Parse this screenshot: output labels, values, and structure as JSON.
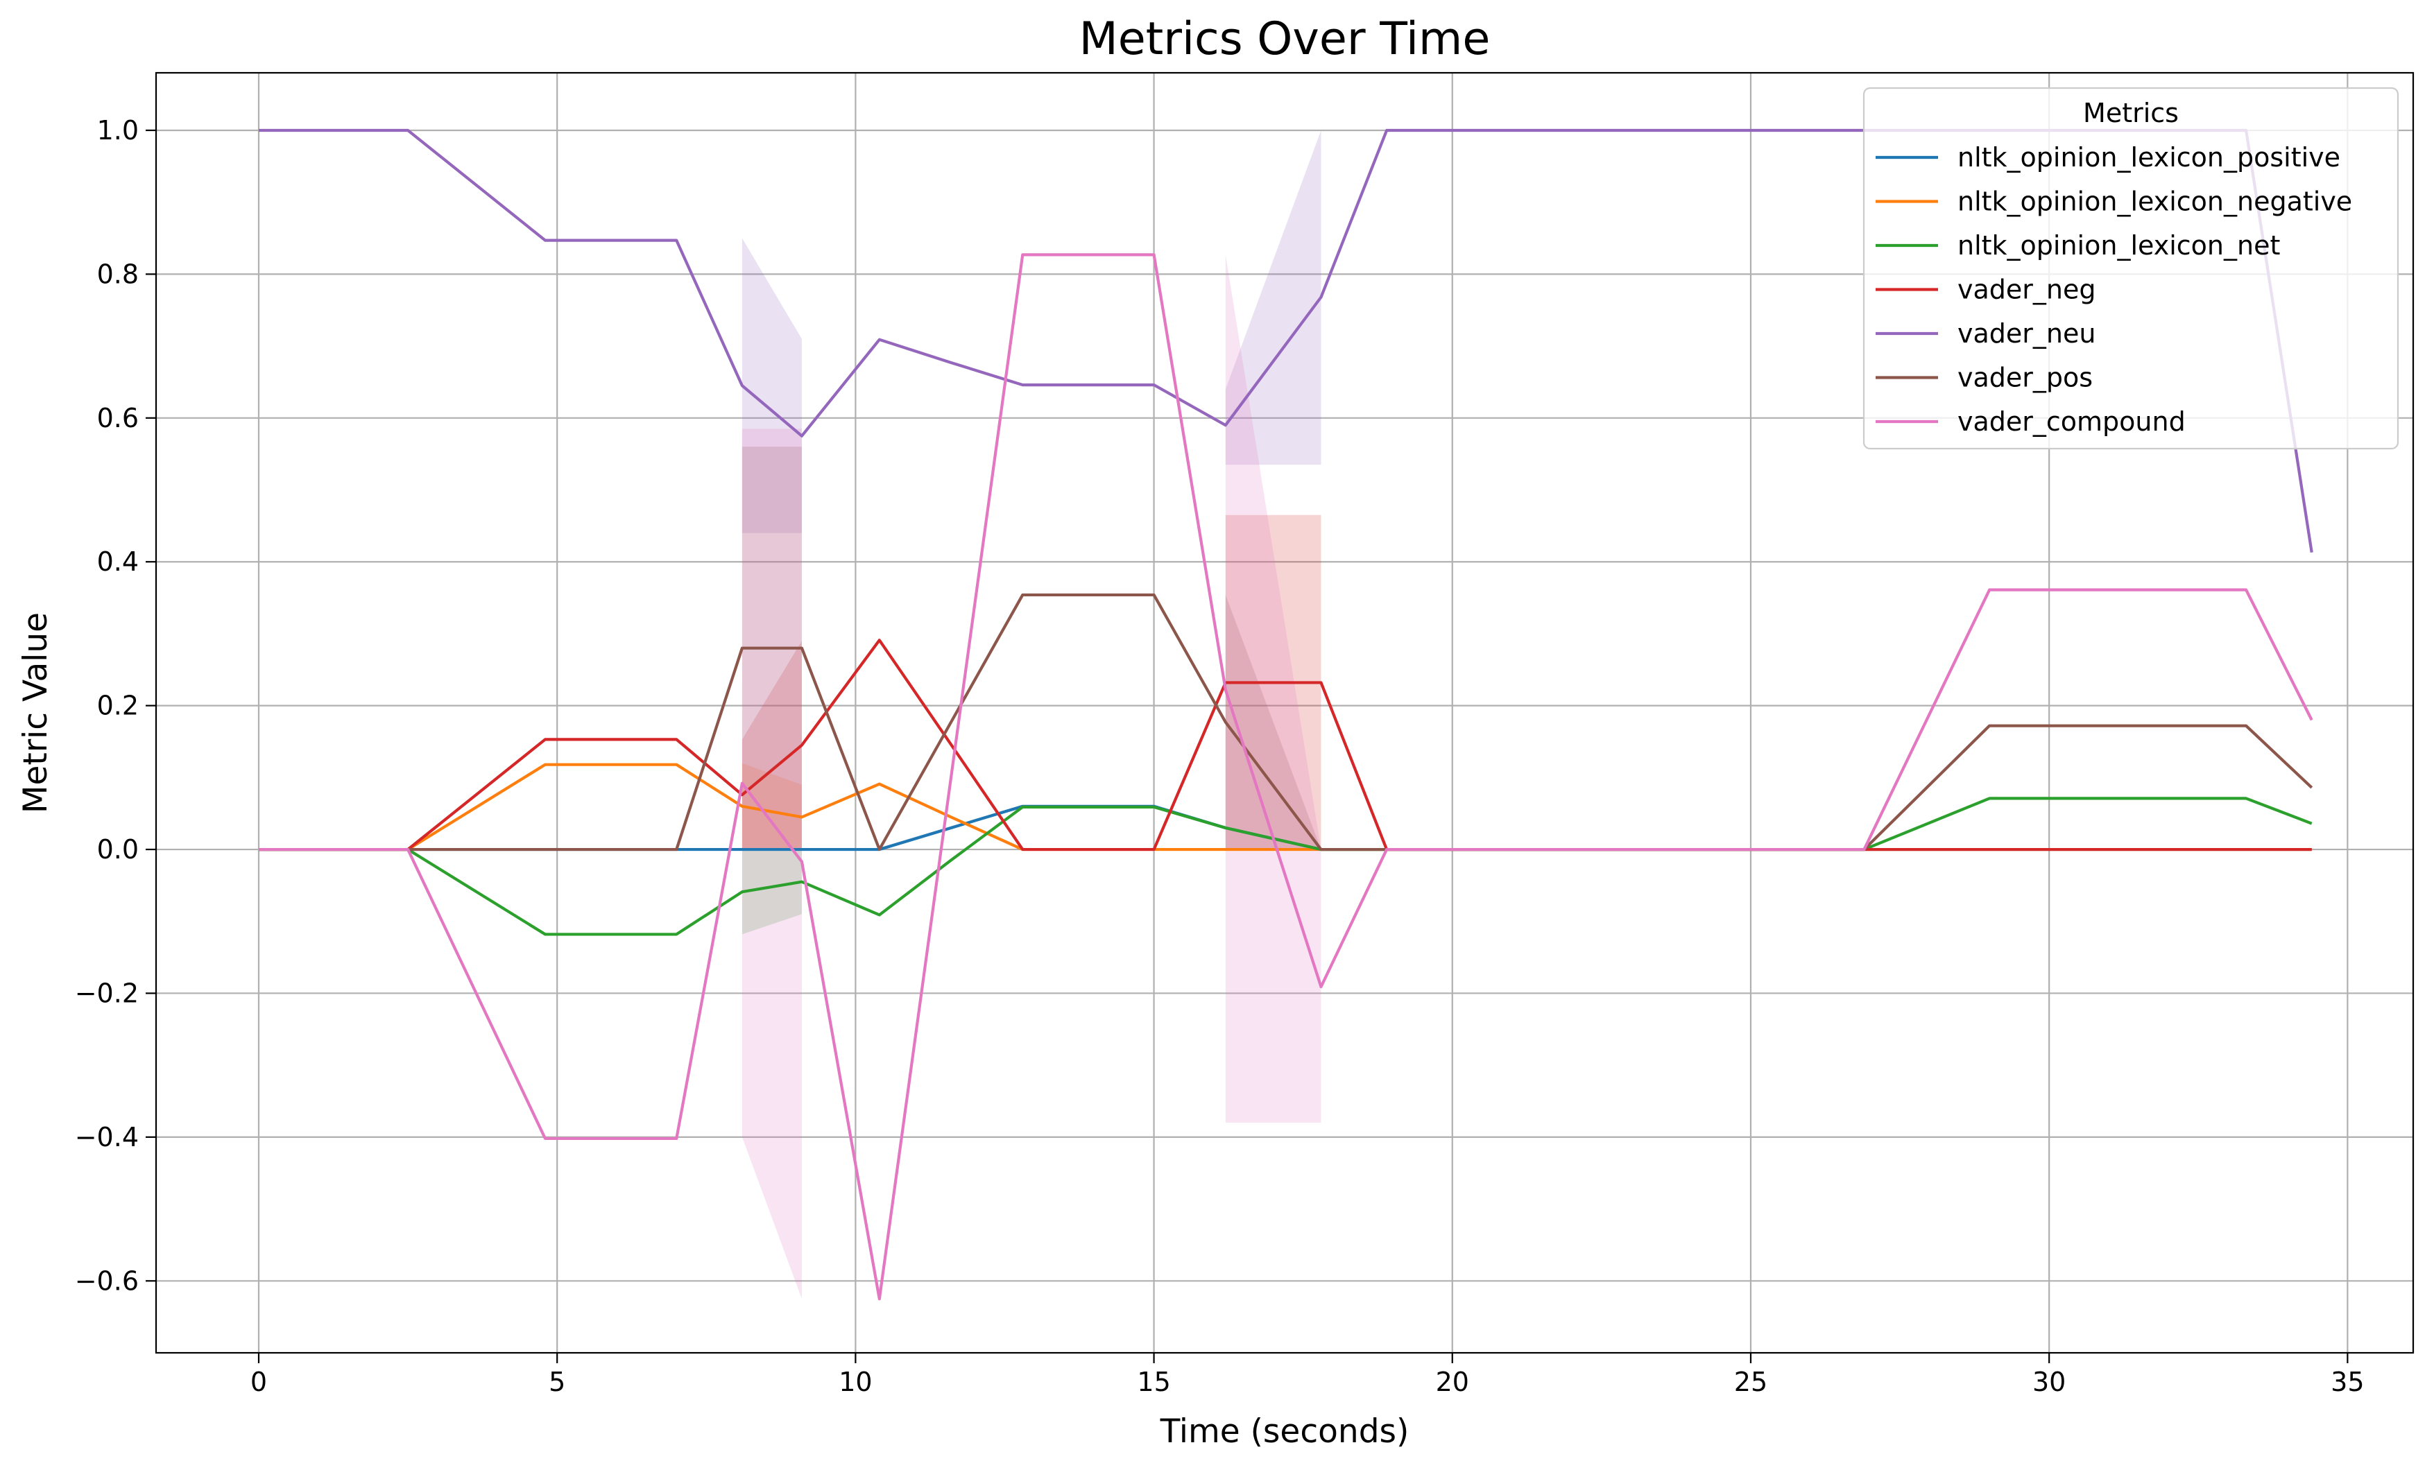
{
  "chart_data": {
    "type": "line",
    "title": "Metrics Over Time",
    "xlabel": "Time (seconds)",
    "ylabel": "Metric Value",
    "xlim": [
      -1.72,
      36.1
    ],
    "ylim": [
      -0.7,
      1.08
    ],
    "xticks": [
      0,
      5,
      10,
      15,
      20,
      25,
      30,
      35
    ],
    "yticks": [
      -0.6,
      -0.4,
      -0.2,
      0.0,
      0.2,
      0.4,
      0.6,
      0.8,
      1.0
    ],
    "grid": true,
    "legend": {
      "title": "Metrics",
      "placement": "top-right"
    },
    "x": [
      0,
      2.5,
      4.8,
      7.0,
      8.1,
      9.1,
      10.4,
      11.6,
      12.8,
      15.0,
      16.2,
      17.8,
      18.9,
      26.9,
      29.0,
      33.3,
      34.4
    ],
    "series": [
      {
        "name": "nltk_opinion_lexicon_positive",
        "color": "#1f77b4",
        "values": [
          0,
          0,
          0,
          0,
          0,
          0,
          0,
          0.03,
          0.06,
          0.06,
          0.03,
          0,
          0,
          0,
          0,
          0,
          0
        ],
        "band": [
          [
            8.1,
            0,
            0
          ],
          [
            9.1,
            0,
            0
          ]
        ]
      },
      {
        "name": "nltk_opinion_lexicon_negative",
        "color": "#ff7f0e",
        "values": [
          0,
          0,
          0.118,
          0.118,
          0.06,
          0.045,
          0.091,
          0.045,
          0,
          0,
          0,
          0,
          0,
          0,
          0,
          0,
          0
        ],
        "band": [
          [
            8.1,
            0,
            0.12
          ],
          [
            9.1,
            0,
            0.09
          ]
        ]
      },
      {
        "name": "nltk_opinion_lexicon_net",
        "color": "#2ca02c",
        "values": [
          0,
          0,
          -0.118,
          -0.118,
          -0.059,
          -0.045,
          -0.091,
          -0.015,
          0.059,
          0.059,
          0.03,
          0,
          0,
          0,
          0.071,
          0.071,
          0.036
        ],
        "band": [
          [
            8.1,
            -0.118,
            0.0
          ],
          [
            9.1,
            -0.09,
            0.0
          ]
        ]
      },
      {
        "name": "vader_neg",
        "color": "#d62728",
        "values": [
          0,
          0,
          0.153,
          0.153,
          0.076,
          0.145,
          0.291,
          0.146,
          0,
          0,
          0.232,
          0.232,
          0,
          0,
          0,
          0,
          0
        ],
        "band": [
          [
            8.1,
            0,
            0.153
          ],
          [
            9.1,
            0,
            0.29
          ],
          [
            16.2,
            0,
            0.465
          ],
          [
            17.8,
            0,
            0.465
          ]
        ]
      },
      {
        "name": "vader_neu",
        "color": "#9467bd",
        "values": [
          1.0,
          1.0,
          0.847,
          0.847,
          0.645,
          0.575,
          0.709,
          0.677,
          0.646,
          0.646,
          0.59,
          0.768,
          1.0,
          1.0,
          1.0,
          1.0,
          0.413
        ],
        "band": [
          [
            8.1,
            0.44,
            0.85
          ],
          [
            9.1,
            0.44,
            0.71
          ],
          [
            16.2,
            0.535,
            0.64
          ],
          [
            17.8,
            0.535,
            1.0
          ]
        ]
      },
      {
        "name": "vader_pos",
        "color": "#8c564b",
        "values": [
          0,
          0,
          0,
          0,
          0.28,
          0.28,
          0,
          0.177,
          0.354,
          0.354,
          0.177,
          0,
          0,
          0,
          0.172,
          0.172,
          0.086
        ],
        "band": [
          [
            8.1,
            0,
            0.56
          ],
          [
            9.1,
            0,
            0.56
          ],
          [
            16.2,
            0,
            0.354
          ],
          [
            17.8,
            0,
            0.0
          ]
        ]
      },
      {
        "name": "vader_compound",
        "color": "#e377c2",
        "values": [
          0,
          0,
          -0.402,
          -0.402,
          0.092,
          -0.017,
          -0.625,
          0.1,
          0.827,
          0.827,
          0.222,
          -0.191,
          0,
          0,
          0.361,
          0.361,
          0.18
        ],
        "band": [
          [
            8.1,
            -0.4,
            0.585
          ],
          [
            9.1,
            -0.625,
            0.585
          ],
          [
            16.2,
            -0.38,
            0.827
          ],
          [
            17.8,
            -0.38,
            0.0
          ]
        ]
      }
    ]
  }
}
